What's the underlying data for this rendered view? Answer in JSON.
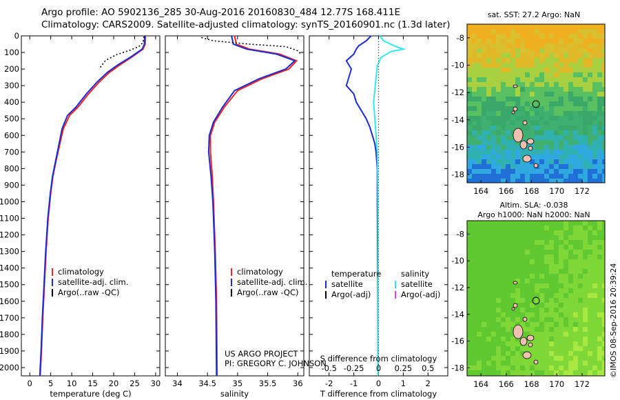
{
  "header": {
    "line1": "Argo profile: AO 5902136_285 30-Aug-2016 20160830_484 12.77S 168.411E",
    "line2": "Climatology: CARS2009. Satellite-adjusted climatology: synTS_20160901.nc (1.3d later)"
  },
  "colors": {
    "climatology": "#ff2020",
    "satellite": "#1a2bd0",
    "argo": "#000000",
    "sal_satellite": "#30e8f0",
    "sal_argo": "#e040e0"
  },
  "chart_data": [
    {
      "type": "line",
      "panel": "temperature",
      "xlabel": "temperature (deg C)",
      "ylabel": "",
      "xlim": [
        -2,
        31
      ],
      "ylim": [
        2050,
        0
      ],
      "xticks": [
        "0",
        "5",
        "10",
        "15",
        "20",
        "25",
        "30"
      ],
      "xtick_values": [
        0,
        5,
        10,
        15,
        20,
        25,
        30
      ],
      "yticks": [
        "0",
        "100",
        "200",
        "300",
        "400",
        "500",
        "600",
        "700",
        "800",
        "900",
        "1000",
        "1100",
        "1200",
        "1300",
        "1400",
        "1500",
        "1600",
        "1700",
        "1800",
        "1900",
        "2000"
      ],
      "ytick_values": [
        0,
        100,
        200,
        300,
        400,
        500,
        600,
        700,
        800,
        900,
        1000,
        1100,
        1200,
        1300,
        1400,
        1500,
        1600,
        1700,
        1800,
        1900,
        2000
      ],
      "legend": [
        "climatology",
        "satellite-adj. clim.",
        "Argo(..raw -QC)"
      ],
      "series": [
        {
          "name": "climatology",
          "points": [
            [
              27.6,
              0
            ],
            [
              27.5,
              50
            ],
            [
              27.0,
              80
            ],
            [
              24.5,
              125
            ],
            [
              21.5,
              175
            ],
            [
              19.0,
              220
            ],
            [
              16.5,
              280
            ],
            [
              14.0,
              350
            ],
            [
              11.5,
              430
            ],
            [
              9.5,
              480
            ],
            [
              8.0,
              560
            ],
            [
              7.2,
              650
            ],
            [
              6.3,
              750
            ],
            [
              5.5,
              850
            ],
            [
              5.0,
              950
            ],
            [
              4.4,
              1100
            ],
            [
              3.9,
              1300
            ],
            [
              3.5,
              1500
            ],
            [
              3.1,
              1700
            ],
            [
              2.8,
              1900
            ],
            [
              2.5,
              2050
            ]
          ]
        },
        {
          "name": "satellite-adj. clim.",
          "points": [
            [
              27.4,
              0
            ],
            [
              27.3,
              50
            ],
            [
              26.8,
              80
            ],
            [
              24.2,
              125
            ],
            [
              21.0,
              175
            ],
            [
              18.5,
              220
            ],
            [
              16.0,
              280
            ],
            [
              13.5,
              350
            ],
            [
              11.0,
              430
            ],
            [
              9.0,
              480
            ],
            [
              7.7,
              560
            ],
            [
              7.0,
              650
            ],
            [
              6.2,
              750
            ],
            [
              5.4,
              850
            ],
            [
              4.9,
              950
            ],
            [
              4.3,
              1100
            ],
            [
              3.8,
              1300
            ],
            [
              3.4,
              1500
            ],
            [
              3.0,
              1700
            ],
            [
              2.7,
              1900
            ],
            [
              2.4,
              2050
            ]
          ]
        },
        {
          "name": "Argo(..raw -QC)",
          "points": [
            [
              27.2,
              5
            ],
            [
              27.0,
              40
            ],
            [
              26.0,
              65
            ],
            [
              23.5,
              90
            ],
            [
              20.5,
              115
            ],
            [
              18.0,
              150
            ],
            [
              16.5,
              200
            ]
          ]
        }
      ]
    },
    {
      "type": "line",
      "panel": "salinity",
      "xlabel": "salinity",
      "ylabel": "",
      "xlim": [
        33.8,
        36.1
      ],
      "ylim": [
        2050,
        0
      ],
      "xticks": [
        "34",
        "34.5",
        "35",
        "35.5",
        "36"
      ],
      "xtick_values": [
        34,
        34.5,
        35,
        35.5,
        36
      ],
      "legend": [
        "climatology",
        "satellite-adj. clim.",
        "Argo(..raw -QC)"
      ],
      "annotation_lines": [
        "US ARGO PROJECT",
        "PI: GREGORY C. JOHNSON"
      ],
      "series": [
        {
          "name": "climatology",
          "points": [
            [
              34.95,
              0
            ],
            [
              34.98,
              50
            ],
            [
              35.2,
              80
            ],
            [
              35.7,
              110
            ],
            [
              35.98,
              150
            ],
            [
              35.85,
              200
            ],
            [
              35.4,
              260
            ],
            [
              35.0,
              330
            ],
            [
              34.78,
              430
            ],
            [
              34.62,
              520
            ],
            [
              34.55,
              600
            ],
            [
              34.55,
              700
            ],
            [
              34.58,
              850
            ],
            [
              34.6,
              1000
            ],
            [
              34.63,
              1300
            ],
            [
              34.65,
              1600
            ],
            [
              34.66,
              2050
            ]
          ]
        },
        {
          "name": "satellite-adj. clim.",
          "points": [
            [
              34.9,
              0
            ],
            [
              34.93,
              50
            ],
            [
              35.15,
              80
            ],
            [
              35.65,
              110
            ],
            [
              35.95,
              150
            ],
            [
              35.8,
              200
            ],
            [
              35.35,
              260
            ],
            [
              34.95,
              330
            ],
            [
              34.75,
              430
            ],
            [
              34.6,
              520
            ],
            [
              34.53,
              600
            ],
            [
              34.52,
              700
            ],
            [
              34.56,
              850
            ],
            [
              34.59,
              1000
            ],
            [
              34.62,
              1300
            ],
            [
              34.64,
              1600
            ],
            [
              34.65,
              2050
            ]
          ]
        },
        {
          "name": "Argo(..raw -QC)",
          "points": [
            [
              34.4,
              10
            ],
            [
              34.6,
              30
            ],
            [
              35.2,
              50
            ],
            [
              35.8,
              65
            ],
            [
              36.0,
              90
            ],
            [
              36.05,
              110
            ]
          ]
        }
      ]
    },
    {
      "type": "line",
      "panel": "difference",
      "xlabel": "T difference from climatology",
      "xlabel2": "S difference from climatology",
      "xlim": [
        -2.8,
        2.8
      ],
      "ylim": [
        2050,
        0
      ],
      "xticks": [
        "-2",
        "-1",
        "0",
        "1",
        "2"
      ],
      "xtick_values": [
        -2,
        -1,
        0,
        1,
        2
      ],
      "xticks2": [
        "-0.5",
        "-0.25",
        "0",
        "0.25",
        "0.5"
      ],
      "xtick2_positions": [
        -2,
        -1,
        0,
        1,
        2
      ],
      "legend_temperature_title": "temperature",
      "legend_salinity_title": "salinity",
      "legend_temperature": [
        "satellite",
        "Argo(-adj)"
      ],
      "legend_salinity": [
        "satellite",
        "Argo(-adj)"
      ],
      "series": [
        {
          "name": "temperature satellite",
          "points": [
            [
              -0.3,
              0
            ],
            [
              -0.5,
              30
            ],
            [
              -0.8,
              60
            ],
            [
              -0.9,
              80
            ],
            [
              -1.0,
              110
            ],
            [
              -1.3,
              150
            ],
            [
              -1.1,
              200
            ],
            [
              -1.2,
              250
            ],
            [
              -1.3,
              300
            ],
            [
              -1.0,
              350
            ],
            [
              -0.9,
              400
            ],
            [
              -0.7,
              450
            ],
            [
              -0.5,
              500
            ],
            [
              -0.35,
              550
            ],
            [
              -0.25,
              600
            ],
            [
              -0.15,
              650
            ],
            [
              -0.1,
              700
            ],
            [
              -0.05,
              800
            ],
            [
              -0.05,
              1000
            ],
            [
              -0.03,
              1500
            ],
            [
              -0.02,
              2050
            ]
          ]
        },
        {
          "name": "salinity satellite",
          "points": [
            [
              0.05,
              0
            ],
            [
              0.2,
              30
            ],
            [
              0.7,
              65
            ],
            [
              1.0,
              80
            ],
            [
              0.5,
              95
            ],
            [
              0.1,
              130
            ],
            [
              -0.05,
              180
            ],
            [
              -0.1,
              250
            ],
            [
              -0.15,
              330
            ],
            [
              -0.2,
              400
            ],
            [
              -0.15,
              500
            ],
            [
              -0.1,
              600
            ],
            [
              -0.05,
              700
            ],
            [
              -0.03,
              900
            ],
            [
              -0.02,
              1200
            ],
            [
              -0.02,
              2050
            ]
          ]
        }
      ]
    }
  ],
  "maps": {
    "sst": {
      "title": "sat. SST: 27.2 Argo: NaN",
      "yticks": [
        "-8",
        "-10",
        "-12",
        "-14",
        "-16",
        "-18"
      ],
      "xticks": [
        "164",
        "166",
        "168",
        "170",
        "172"
      ]
    },
    "sla": {
      "title_line1": "Altim. SLA: -0.038",
      "title_line2": "Argo h1000: NaN h2000: NaN",
      "yticks": [
        "-8",
        "-10",
        "-12",
        "-14",
        "-16",
        "-18"
      ],
      "xticks": [
        "164",
        "166",
        "168",
        "170",
        "172"
      ]
    },
    "timestamp": "©IMOS 08-Sep-2016 20:39:24"
  }
}
